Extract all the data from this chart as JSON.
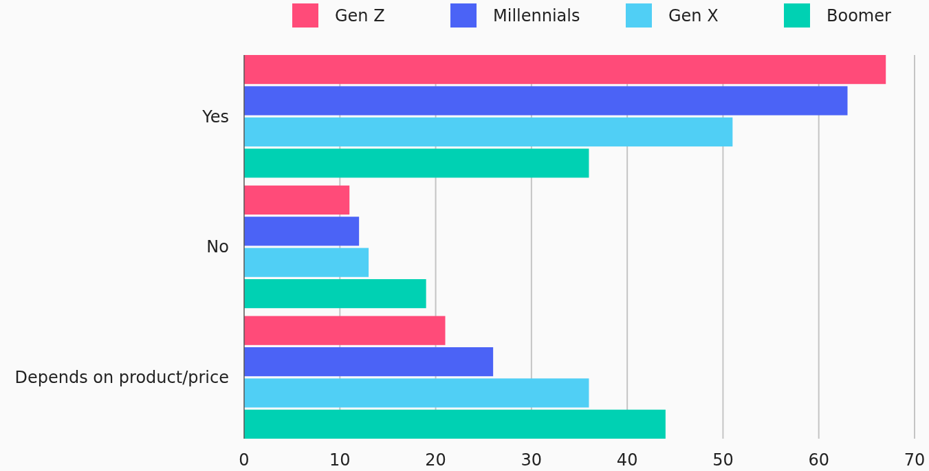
{
  "chart_data": {
    "type": "bar",
    "orientation": "horizontal",
    "categories": [
      "Yes",
      "No",
      "Depends on product/price"
    ],
    "series": [
      {
        "name": "Gen Z",
        "color": "#ff4b79",
        "values": [
          67,
          11,
          21
        ]
      },
      {
        "name": "Millennials",
        "color": "#4b63f6",
        "values": [
          63,
          12,
          26
        ]
      },
      {
        "name": "Gen X",
        "color": "#50cff5",
        "values": [
          51,
          13,
          36
        ]
      },
      {
        "name": "Boomer",
        "color": "#00d1b3",
        "values": [
          36,
          19,
          44
        ]
      }
    ],
    "xlim": [
      0,
      70
    ],
    "xticks": [
      0,
      10,
      20,
      30,
      40,
      50,
      60,
      70
    ],
    "grid": "x",
    "legend": "top"
  }
}
